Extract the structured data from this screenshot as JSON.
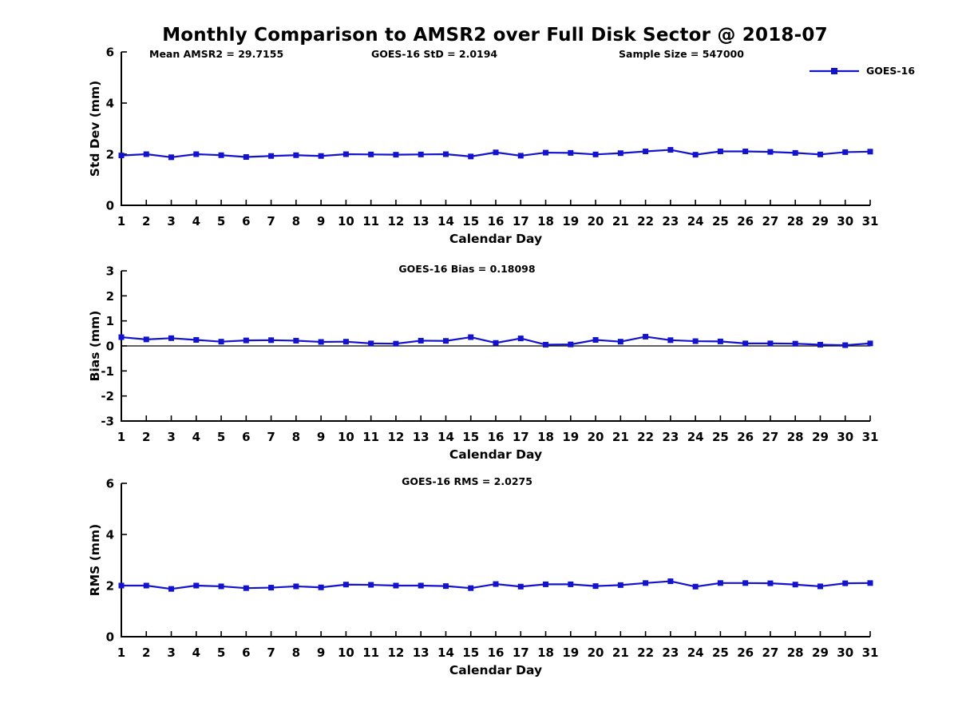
{
  "title": "Monthly Comparison to AMSR2 over Full Disk Sector @ 2018-07",
  "annotations": {
    "mean_amsr2": "Mean AMSR2 = 29.7155",
    "goes16_std": "GOES-16 StD = 2.0194",
    "sample_size": "Sample Size = 547000"
  },
  "legend": {
    "label": "GOES-16",
    "color": "#1212cf",
    "position": "top-right"
  },
  "chart_data": [
    {
      "type": "line",
      "series_name": "GOES-16",
      "title": "",
      "xlabel": "Calendar Day",
      "ylabel": "Std Dev (mm)",
      "ylim": [
        0,
        6
      ],
      "yticks": [
        0,
        2,
        4,
        6
      ],
      "grid": false,
      "zero_line": false,
      "annotation": "",
      "x": [
        1,
        2,
        3,
        4,
        5,
        6,
        7,
        8,
        9,
        10,
        11,
        12,
        13,
        14,
        15,
        16,
        17,
        18,
        19,
        20,
        21,
        22,
        23,
        24,
        25,
        26,
        27,
        28,
        29,
        30,
        31
      ],
      "values": [
        1.95,
        2.0,
        1.88,
        2.0,
        1.96,
        1.89,
        1.93,
        1.96,
        1.93,
        2.0,
        1.99,
        1.98,
        1.99,
        2.0,
        1.91,
        2.07,
        1.94,
        2.06,
        2.05,
        1.99,
        2.04,
        2.11,
        2.17,
        1.98,
        2.11,
        2.11,
        2.09,
        2.05,
        1.99,
        2.08,
        2.1
      ]
    },
    {
      "type": "line",
      "series_name": "GOES-16",
      "title": "",
      "xlabel": "Calendar Day",
      "ylabel": "Bias (mm)",
      "ylim": [
        -3,
        3
      ],
      "yticks": [
        -3,
        -2,
        -1,
        0,
        1,
        2,
        3
      ],
      "grid": false,
      "zero_line": true,
      "annotation": "GOES-16 Bias = 0.18098",
      "x": [
        1,
        2,
        3,
        4,
        5,
        6,
        7,
        8,
        9,
        10,
        11,
        12,
        13,
        14,
        15,
        16,
        17,
        18,
        19,
        20,
        21,
        22,
        23,
        24,
        25,
        26,
        27,
        28,
        29,
        30,
        31
      ],
      "values": [
        0.35,
        0.26,
        0.31,
        0.24,
        0.17,
        0.22,
        0.23,
        0.21,
        0.16,
        0.17,
        0.1,
        0.09,
        0.21,
        0.2,
        0.35,
        0.12,
        0.3,
        0.05,
        0.06,
        0.24,
        0.17,
        0.37,
        0.23,
        0.19,
        0.18,
        0.1,
        0.1,
        0.09,
        0.05,
        0.03,
        0.1
      ]
    },
    {
      "type": "line",
      "series_name": "GOES-16",
      "title": "",
      "xlabel": "Calendar Day",
      "ylabel": "RMS (mm)",
      "ylim": [
        0,
        6
      ],
      "yticks": [
        0,
        2,
        4,
        6
      ],
      "grid": false,
      "zero_line": false,
      "annotation": "GOES-16 RMS = 2.0275",
      "x": [
        1,
        2,
        3,
        4,
        5,
        6,
        7,
        8,
        9,
        10,
        11,
        12,
        13,
        14,
        15,
        16,
        17,
        18,
        19,
        20,
        21,
        22,
        23,
        24,
        25,
        26,
        27,
        28,
        29,
        30,
        31
      ],
      "values": [
        2.0,
        2.0,
        1.87,
        2.0,
        1.97,
        1.9,
        1.92,
        1.97,
        1.93,
        2.04,
        2.03,
        2.0,
        2.0,
        1.98,
        1.9,
        2.06,
        1.96,
        2.05,
        2.05,
        1.98,
        2.02,
        2.1,
        2.17,
        1.96,
        2.1,
        2.1,
        2.09,
        2.04,
        1.97,
        2.09,
        2.1
      ]
    }
  ]
}
